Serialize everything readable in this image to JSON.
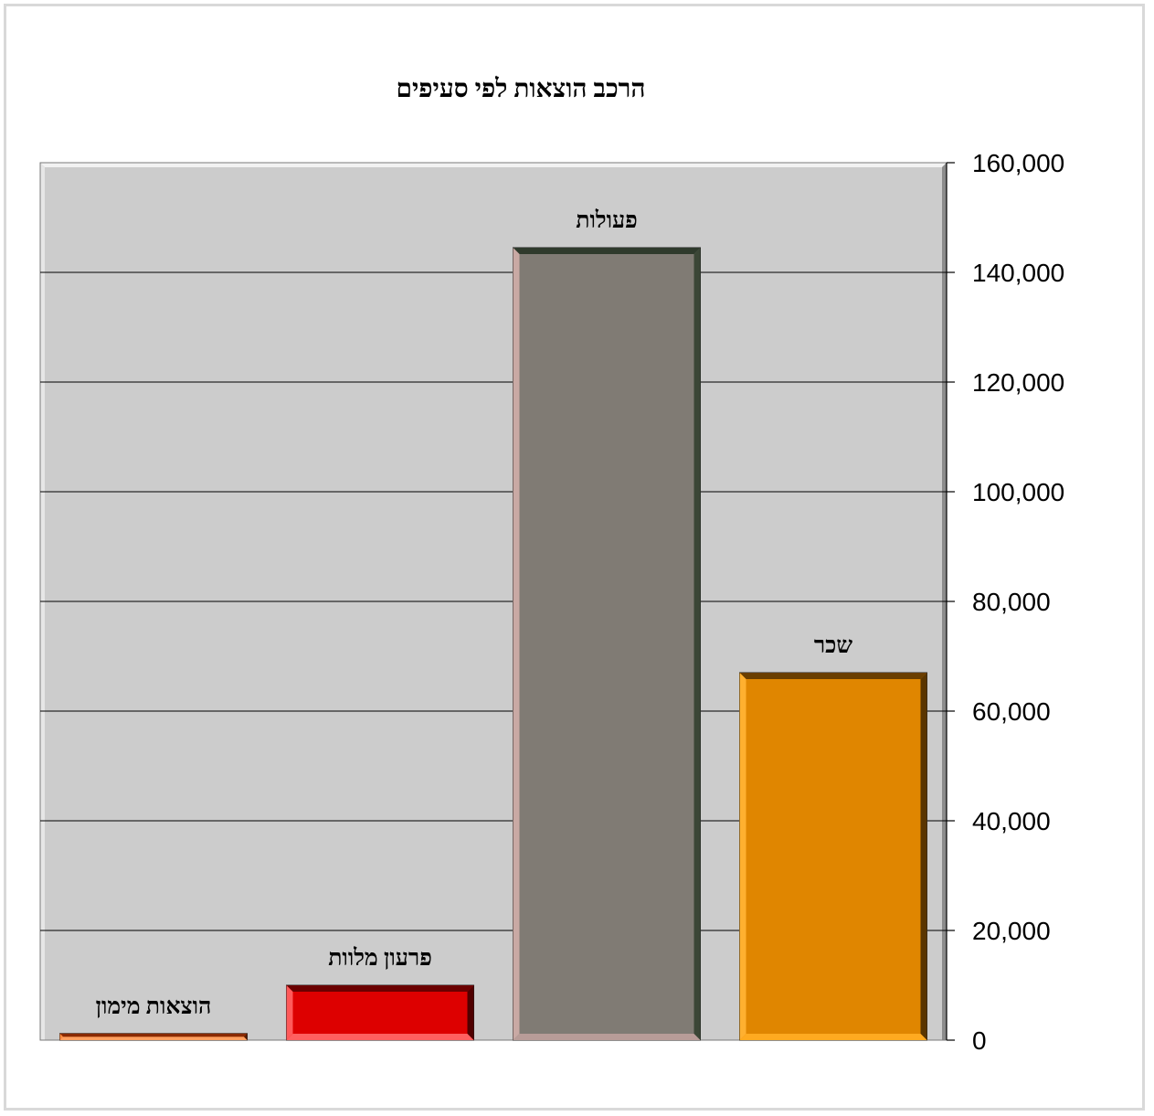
{
  "chart_data": {
    "type": "bar",
    "title": "הרכב הוצאות לפי סעיפים",
    "categories": [
      "הוצאות מימון",
      "פרעון מלוות",
      "פעולות",
      "שכר"
    ],
    "values": [
      1200,
      10000,
      144500,
      67000
    ],
    "ylim": [
      0,
      160000
    ],
    "yticks": [
      "0",
      "20,000",
      "40,000",
      "60,000",
      "80,000",
      "100,000",
      "120,000",
      "140,000",
      "160,000"
    ],
    "y_axis_side": "right",
    "grid": true,
    "legend": "none",
    "data_labels": "category names above bars",
    "colors": {
      "plot_background": "#cccccc",
      "gridline": "#000000",
      "bars": [
        "#d35400",
        "#dd0000",
        "#807b74",
        "#e08600"
      ]
    }
  }
}
